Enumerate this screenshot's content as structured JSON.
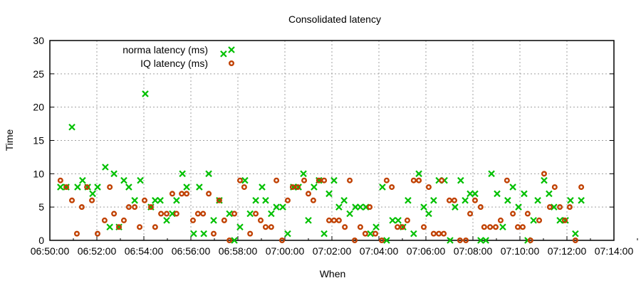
{
  "chart_data": {
    "type": "scatter",
    "title": "Consolidated latency",
    "xlabel": "When",
    "ylabel": "Time",
    "x_units": "minutes after 06:50:00",
    "xlim": [
      0,
      24
    ],
    "ylim": [
      0,
      30
    ],
    "grid": true,
    "legend_placement": "top-left",
    "x_ticks": [
      "06:50:00",
      "06:52:00",
      "06:54:00",
      "06:56:00",
      "06:58:00",
      "07:00:00",
      "07:02:00",
      "07:04:00",
      "07:06:00",
      "07:08:00",
      "07:10:00",
      "07:12:00",
      "07:14:00"
    ],
    "y_ticks": [
      "0",
      "5",
      "10",
      "15",
      "20",
      "25",
      "30"
    ],
    "series": [
      {
        "name": "norma latency (ms)",
        "color": "#00c000",
        "marker": "x",
        "points": [
          [
            0.45,
            8
          ],
          [
            0.7,
            8
          ],
          [
            0.94,
            17
          ],
          [
            1.18,
            8
          ],
          [
            1.39,
            9
          ],
          [
            1.61,
            8
          ],
          [
            1.82,
            7
          ],
          [
            2.03,
            8
          ],
          [
            2.36,
            11
          ],
          [
            2.55,
            2
          ],
          [
            2.73,
            10
          ],
          [
            2.94,
            2
          ],
          [
            3.15,
            9
          ],
          [
            3.36,
            8
          ],
          [
            3.61,
            6
          ],
          [
            3.85,
            9
          ],
          [
            4.06,
            22
          ],
          [
            4.3,
            5
          ],
          [
            4.48,
            6
          ],
          [
            4.7,
            6
          ],
          [
            4.97,
            3
          ],
          [
            5.21,
            4
          ],
          [
            5.39,
            6
          ],
          [
            5.64,
            10
          ],
          [
            5.82,
            8
          ],
          [
            6.12,
            1
          ],
          [
            6.36,
            8
          ],
          [
            6.55,
            1
          ],
          [
            6.76,
            10
          ],
          [
            6.97,
            3
          ],
          [
            7.21,
            6
          ],
          [
            7.39,
            28
          ],
          [
            7.64,
            4
          ],
          [
            7.85,
            0
          ],
          [
            8.09,
            2
          ],
          [
            8.3,
            9
          ],
          [
            8.52,
            4
          ],
          [
            8.76,
            6
          ],
          [
            9.03,
            8
          ],
          [
            9.18,
            6
          ],
          [
            9.42,
            4
          ],
          [
            9.64,
            5
          ],
          [
            9.91,
            5
          ],
          [
            10.12,
            1
          ],
          [
            10.36,
            8
          ],
          [
            10.58,
            8
          ],
          [
            10.79,
            10
          ],
          [
            11.0,
            3
          ],
          [
            11.24,
            8
          ],
          [
            11.45,
            9
          ],
          [
            11.67,
            1
          ],
          [
            11.88,
            7
          ],
          [
            12.09,
            9
          ],
          [
            12.3,
            5
          ],
          [
            12.52,
            6
          ],
          [
            12.76,
            4
          ],
          [
            13.0,
            5
          ],
          [
            13.21,
            5
          ],
          [
            13.45,
            5
          ],
          [
            13.64,
            1
          ],
          [
            13.88,
            2
          ],
          [
            14.15,
            8
          ],
          [
            14.33,
            0
          ],
          [
            14.58,
            3
          ],
          [
            14.82,
            3
          ],
          [
            15.03,
            2
          ],
          [
            15.24,
            6
          ],
          [
            15.48,
            1
          ],
          [
            15.7,
            10
          ],
          [
            15.91,
            5
          ],
          [
            16.12,
            4
          ],
          [
            16.33,
            6
          ],
          [
            16.55,
            9
          ],
          [
            16.79,
            9
          ],
          [
            17.03,
            0
          ],
          [
            17.24,
            5
          ],
          [
            17.48,
            9
          ],
          [
            17.67,
            6
          ],
          [
            17.88,
            7
          ],
          [
            18.09,
            7
          ],
          [
            18.33,
            0
          ],
          [
            18.55,
            0
          ],
          [
            18.79,
            10
          ],
          [
            19.03,
            7
          ],
          [
            19.27,
            2
          ],
          [
            19.48,
            6
          ],
          [
            19.7,
            8
          ],
          [
            19.94,
            5
          ],
          [
            20.18,
            7
          ],
          [
            20.33,
            0
          ],
          [
            20.58,
            3
          ],
          [
            20.76,
            6
          ],
          [
            21.03,
            9
          ],
          [
            21.24,
            7
          ],
          [
            21.45,
            5
          ],
          [
            21.7,
            3
          ],
          [
            21.94,
            3
          ],
          [
            22.15,
            6
          ],
          [
            22.36,
            1
          ],
          [
            22.61,
            6
          ]
        ]
      },
      {
        "name": "IQ latency (ms)",
        "color": "#c04000",
        "marker": "circle",
        "points": [
          [
            0.45,
            9
          ],
          [
            0.7,
            8
          ],
          [
            0.94,
            6
          ],
          [
            1.15,
            1
          ],
          [
            1.36,
            5
          ],
          [
            1.58,
            8
          ],
          [
            1.79,
            6
          ],
          [
            2.03,
            1
          ],
          [
            2.33,
            3
          ],
          [
            2.55,
            8
          ],
          [
            2.73,
            4
          ],
          [
            2.94,
            2
          ],
          [
            3.15,
            3
          ],
          [
            3.36,
            5
          ],
          [
            3.61,
            5
          ],
          [
            3.82,
            2
          ],
          [
            4.03,
            6
          ],
          [
            4.3,
            5
          ],
          [
            4.48,
            2
          ],
          [
            4.73,
            4
          ],
          [
            4.97,
            4
          ],
          [
            5.21,
            7
          ],
          [
            5.39,
            4
          ],
          [
            5.61,
            7
          ],
          [
            5.82,
            7
          ],
          [
            6.09,
            3
          ],
          [
            6.3,
            4
          ],
          [
            6.52,
            4
          ],
          [
            6.76,
            7
          ],
          [
            6.97,
            1
          ],
          [
            7.21,
            6
          ],
          [
            7.42,
            3
          ],
          [
            7.64,
            0
          ],
          [
            7.85,
            4
          ],
          [
            8.09,
            9
          ],
          [
            8.27,
            8
          ],
          [
            8.52,
            1
          ],
          [
            8.76,
            4
          ],
          [
            8.97,
            3
          ],
          [
            9.18,
            2
          ],
          [
            9.42,
            2
          ],
          [
            9.64,
            9
          ],
          [
            9.88,
            0
          ],
          [
            10.12,
            6
          ],
          [
            10.33,
            8
          ],
          [
            10.55,
            8
          ],
          [
            10.82,
            9
          ],
          [
            11.0,
            7
          ],
          [
            11.21,
            6
          ],
          [
            11.45,
            9
          ],
          [
            11.67,
            9
          ],
          [
            11.88,
            3
          ],
          [
            12.09,
            3
          ],
          [
            12.3,
            3
          ],
          [
            12.55,
            2
          ],
          [
            12.76,
            9
          ],
          [
            12.97,
            0
          ],
          [
            13.21,
            2
          ],
          [
            13.42,
            1
          ],
          [
            13.61,
            5
          ],
          [
            13.85,
            1
          ],
          [
            14.12,
            0
          ],
          [
            14.33,
            9
          ],
          [
            14.55,
            8
          ],
          [
            14.79,
            2
          ],
          [
            15.0,
            2
          ],
          [
            15.21,
            3
          ],
          [
            15.48,
            9
          ],
          [
            15.7,
            9
          ],
          [
            15.91,
            2
          ],
          [
            16.12,
            8
          ],
          [
            16.33,
            1
          ],
          [
            16.55,
            1
          ],
          [
            16.67,
            9
          ],
          [
            16.76,
            1
          ],
          [
            17.0,
            6
          ],
          [
            17.21,
            6
          ],
          [
            17.45,
            0
          ],
          [
            17.7,
            0
          ],
          [
            17.88,
            4
          ],
          [
            18.09,
            6
          ],
          [
            18.33,
            5
          ],
          [
            18.48,
            2
          ],
          [
            18.73,
            2
          ],
          [
            18.97,
            2
          ],
          [
            19.18,
            3
          ],
          [
            19.45,
            9
          ],
          [
            19.7,
            4
          ],
          [
            19.91,
            2
          ],
          [
            20.12,
            2
          ],
          [
            20.33,
            4
          ],
          [
            20.45,
            0
          ],
          [
            20.82,
            3
          ],
          [
            21.03,
            10
          ],
          [
            21.27,
            5
          ],
          [
            21.48,
            8
          ],
          [
            21.7,
            5
          ],
          [
            21.91,
            3
          ],
          [
            22.12,
            5
          ],
          [
            22.36,
            0
          ],
          [
            22.61,
            8
          ]
        ]
      }
    ]
  }
}
